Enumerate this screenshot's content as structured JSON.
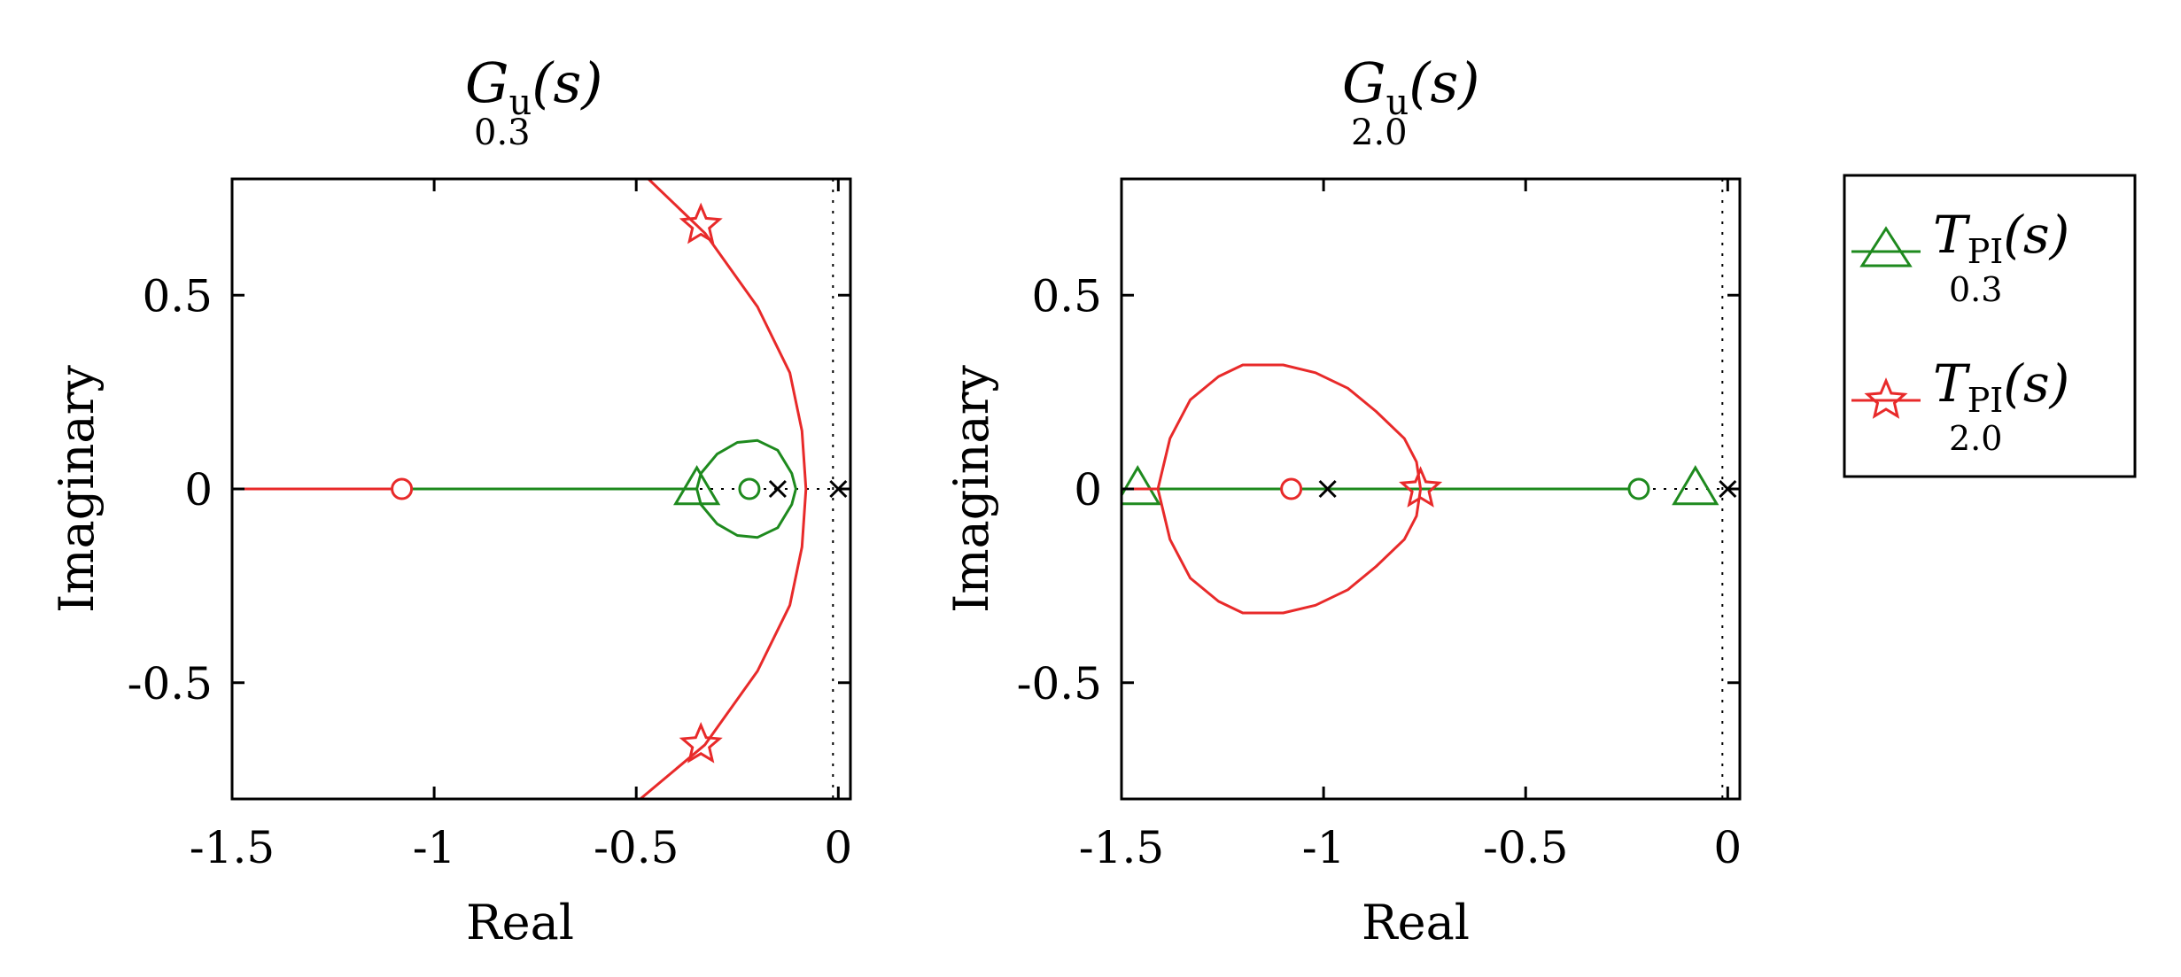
{
  "chart_data": [
    {
      "type": "scatter",
      "title": {
        "main": "G",
        "subscript": "u",
        "args": "(s)",
        "param": "0.3"
      },
      "xlabel": "Real",
      "ylabel": "Imaginary",
      "xlim": [
        -1.5,
        0.03
      ],
      "ylim": [
        -0.8,
        0.8
      ],
      "xticks": [
        -1.5,
        -1,
        -0.5,
        0
      ],
      "xtick_labels": [
        "-1.5",
        "-1",
        "-0.5",
        "0"
      ],
      "yticks": [
        0.5,
        0,
        -0.5
      ],
      "ytick_labels": [
        "0.5",
        "0",
        "-0.5"
      ],
      "series": [
        {
          "name": "T_PI(s) 0.3",
          "color": "#1e8a1e",
          "segments": [
            [
              [
                -1.08,
                0
              ],
              [
                -0.35,
                0
              ]
            ],
            [
              [
                -0.35,
                0
              ],
              [
                -0.34,
                0.04
              ],
              [
                -0.3,
                0.09
              ],
              [
                -0.25,
                0.12
              ],
              [
                -0.2,
                0.125
              ],
              [
                -0.15,
                0.1
              ],
              [
                -0.115,
                0.04
              ],
              [
                -0.105,
                0
              ],
              [
                -0.115,
                -0.04
              ],
              [
                -0.15,
                -0.1
              ],
              [
                -0.2,
                -0.125
              ],
              [
                -0.25,
                -0.12
              ],
              [
                -0.3,
                -0.09
              ],
              [
                -0.34,
                -0.04
              ],
              [
                -0.35,
                0
              ]
            ]
          ],
          "zeros": [
            [
              -0.22,
              0
            ]
          ],
          "markers": [
            [
              -0.35,
              0
            ]
          ],
          "marker": "triangle"
        },
        {
          "name": "T_PI(s) 2.0",
          "color": "#e82a2a",
          "segments": [
            [
              [
                -1.5,
                0
              ],
              [
                -1.08,
                0
              ]
            ],
            [
              [
                -0.47,
                0.8
              ],
              [
                -0.33,
                0.66
              ],
              [
                -0.2,
                0.47
              ],
              [
                -0.12,
                0.3
              ],
              [
                -0.09,
                0.15
              ],
              [
                -0.08,
                0
              ],
              [
                -0.09,
                -0.15
              ],
              [
                -0.12,
                -0.3
              ],
              [
                -0.2,
                -0.47
              ],
              [
                -0.33,
                -0.66
              ],
              [
                -0.49,
                -0.8
              ]
            ]
          ],
          "zeros": [
            [
              -1.08,
              0
            ]
          ],
          "markers": [
            [
              -0.34,
              0.68
            ],
            [
              -0.34,
              -0.66
            ]
          ],
          "marker": "star"
        }
      ],
      "poles": [
        [
          -0.15,
          0
        ],
        [
          0,
          0
        ]
      ]
    },
    {
      "type": "scatter",
      "title": {
        "main": "G",
        "subscript": "u",
        "args": "(s)",
        "param": "2.0"
      },
      "xlabel": "Real",
      "ylabel": "Imaginary",
      "xlim": [
        -1.5,
        0.03
      ],
      "ylim": [
        -0.8,
        0.8
      ],
      "xticks": [
        -1.5,
        -1,
        -0.5,
        0
      ],
      "xtick_labels": [
        "-1.5",
        "-1",
        "-0.5",
        "0"
      ],
      "yticks": [
        0.5,
        0,
        -0.5
      ],
      "ytick_labels": [
        "0.5",
        "0",
        "-0.5"
      ],
      "series": [
        {
          "name": "T_PI(s) 0.3",
          "color": "#1e8a1e",
          "segments": [
            [
              [
                -1.46,
                0
              ],
              [
                -0.2,
                0
              ]
            ]
          ],
          "zeros": [
            [
              -0.22,
              0
            ]
          ],
          "markers": [
            [
              -1.46,
              0
            ],
            [
              -0.08,
              0
            ]
          ],
          "marker": "triangle"
        },
        {
          "name": "T_PI(s) 2.0",
          "color": "#e82a2a",
          "segments": [
            [
              [
                -1.41,
                0
              ],
              [
                -1.38,
                0.13
              ],
              [
                -1.33,
                0.23
              ],
              [
                -1.26,
                0.29
              ],
              [
                -1.2,
                0.32
              ],
              [
                -1.1,
                0.32
              ],
              [
                -1.02,
                0.3
              ],
              [
                -0.94,
                0.26
              ],
              [
                -0.87,
                0.2
              ],
              [
                -0.8,
                0.13
              ],
              [
                -0.77,
                0.07
              ],
              [
                -0.76,
                0
              ],
              [
                -0.77,
                -0.07
              ],
              [
                -0.8,
                -0.13
              ],
              [
                -0.87,
                -0.2
              ],
              [
                -0.94,
                -0.26
              ],
              [
                -1.02,
                -0.3
              ],
              [
                -1.1,
                -0.32
              ],
              [
                -1.2,
                -0.32
              ],
              [
                -1.26,
                -0.29
              ],
              [
                -1.33,
                -0.23
              ],
              [
                -1.38,
                -0.13
              ],
              [
                -1.41,
                0
              ]
            ],
            [
              [
                -1.5,
                0
              ],
              [
                -1.41,
                0
              ]
            ]
          ],
          "zeros": [
            [
              -1.08,
              0
            ]
          ],
          "markers": [
            [
              -0.76,
              0
            ]
          ],
          "marker": "star"
        }
      ],
      "poles": [
        [
          -0.99,
          0
        ],
        [
          0,
          0
        ]
      ]
    }
  ],
  "legend": {
    "position": "right",
    "entries": [
      {
        "main": "T",
        "subscript": "PI",
        "args": "(s)",
        "param": "0.3",
        "color": "#1e8a1e",
        "marker": "triangle"
      },
      {
        "main": "T",
        "subscript": "PI",
        "args": "(s)",
        "param": "2.0",
        "color": "#e82a2a",
        "marker": "star"
      }
    ]
  }
}
